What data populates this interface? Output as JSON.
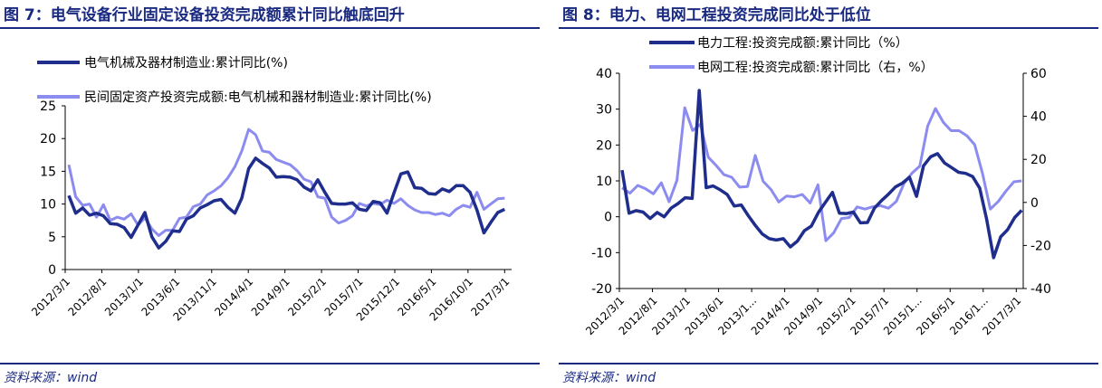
{
  "left": {
    "title": "图 7：电气设备行业固定设备投资完成额累计同比触底回升",
    "source": "资料来源：wind",
    "colors": {
      "dark": "#1f2e8c",
      "light": "#8c8cf0"
    },
    "chart_data": {
      "type": "line",
      "ylim": [
        0,
        25
      ],
      "yticks": [
        "0",
        "5",
        "10",
        "15",
        "20",
        "25"
      ],
      "xticks": [
        "2012/3/1",
        "2012/8/1",
        "2013/1/1",
        "2013/6/1",
        "2013/11/1",
        "2014/4/1",
        "2014/9/1",
        "2015/2/1",
        "2015/7/1",
        "2015/12/1",
        "2016/5/1",
        "2016/10/1",
        "2017/3/1"
      ],
      "series": [
        {
          "name": "电气机械及器材制造业:累计同比(%)",
          "values": [
            11.3,
            8.6,
            9.4,
            8.3,
            8.6,
            8.2,
            7.0,
            6.9,
            6.4,
            4.9,
            6.8,
            8.7,
            5.0,
            3.3,
            4.3,
            5.9,
            5.8,
            7.7,
            8.2,
            9.4,
            9.9,
            10.5,
            10.7,
            9.5,
            8.6,
            10.9,
            15.4,
            17.0,
            16.2,
            15.5,
            14.1,
            14.2,
            14.1,
            13.7,
            12.6,
            12.0,
            13.7,
            11.8,
            10.1,
            10.0,
            10.0,
            10.2,
            9.2,
            9.0,
            10.4,
            10.2,
            8.6,
            11.7,
            14.6,
            14.9,
            12.5,
            12.4,
            11.6,
            11.5,
            12.3,
            11.9,
            12.8,
            12.8,
            11.8,
            9.1,
            5.6,
            7.2,
            8.7,
            9.2
          ]
        },
        {
          "name": "民间固定资产投资完成额:电气机械和器材制造业:累计同比(%)",
          "values": [
            16.0,
            11.1,
            9.8,
            10.0,
            8.0,
            9.9,
            7.5,
            8.0,
            7.7,
            8.5,
            6.8,
            7.9,
            6.2,
            5.2,
            6.0,
            6.0,
            7.8,
            8.0,
            9.6,
            10.0,
            11.4,
            12.0,
            12.8,
            14.0,
            15.7,
            18.1,
            21.4,
            20.6,
            18.1,
            17.9,
            16.8,
            16.4,
            16.0,
            15.1,
            13.8,
            13.4,
            11.1,
            10.9,
            8.0,
            7.1,
            7.5,
            8.2,
            10.1,
            9.7,
            10.1,
            9.9,
            10.6,
            10.1,
            10.8,
            9.8,
            9.1,
            8.7,
            8.7,
            8.4,
            8.6,
            8.2,
            9.2,
            9.8,
            9.5,
            11.8,
            9.2,
            10.0,
            10.8,
            10.9
          ]
        }
      ]
    }
  },
  "right": {
    "title": "图 8：电力、电网工程投资完成同比处于低位",
    "source": "资料来源：wind",
    "colors": {
      "dark": "#1f2e8c",
      "light": "#8c8cf0"
    },
    "chart_data": {
      "type": "line",
      "ylim_left": [
        -20,
        40
      ],
      "ylim_right": [
        -40,
        60
      ],
      "yticks_left": [
        "-20",
        "-10",
        "0",
        "10",
        "20",
        "30",
        "40"
      ],
      "yticks_right": [
        "-40",
        "-20",
        "0",
        "20",
        "40",
        "60"
      ],
      "xticks": [
        "2012/3/1",
        "2012/8/1",
        "2013/1/1",
        "2013/6/1",
        "2013/1...",
        "2014/4/1",
        "2014/9/1",
        "2015/2/1",
        "2015/7/1",
        "2015/1...",
        "2016/5/1",
        "2016/1...",
        "2017/3/1"
      ],
      "series": [
        {
          "name": "电力工程:投资完成额:累计同比（%）",
          "axis": "left",
          "values": [
            13.0,
            1.0,
            1.7,
            1.3,
            -0.5,
            1.2,
            0.0,
            2.4,
            3.7,
            5.3,
            5.1,
            35.2,
            8.1,
            8.6,
            7.5,
            6.2,
            3.0,
            3.3,
            0.3,
            -2.4,
            -4.8,
            -6.1,
            -6.5,
            -6.1,
            -8.4,
            -6.8,
            -3.9,
            -2.6,
            1.2,
            4.0,
            6.8,
            1.0,
            0.9,
            1.3,
            -1.7,
            -1.6,
            2.4,
            4.5,
            6.3,
            8.3,
            9.4,
            11.0,
            5.7,
            14.2,
            16.7,
            17.6,
            15.0,
            13.7,
            12.4,
            12.1,
            11.2,
            8.0,
            -0.7,
            -11.4,
            -5.6,
            -3.6,
            -0.2,
            1.8
          ]
        },
        {
          "name": "电网工程:投资完成额:累计同比（右，%）",
          "axis": "right",
          "values": [
            6.8,
            4.3,
            7.9,
            6.3,
            4.0,
            9.1,
            0.3,
            10.3,
            44.0,
            33.4,
            36.3,
            21.0,
            17.2,
            12.9,
            11.7,
            7.1,
            7.4,
            21.8,
            9.8,
            6.0,
            0.2,
            3.0,
            2.6,
            3.7,
            -0.3,
            8.2,
            -17.8,
            -14.2,
            -7.5,
            -7.0,
            -2.1,
            -3.1,
            -2.0,
            -1.5,
            -2.7,
            0.5,
            9.0,
            13.6,
            16.9,
            35.5,
            43.6,
            37.2,
            33.3,
            33.3,
            31.0,
            26.8,
            13.5,
            -3.1,
            0.4,
            5.3,
            9.6,
            10.0
          ]
        }
      ]
    }
  }
}
